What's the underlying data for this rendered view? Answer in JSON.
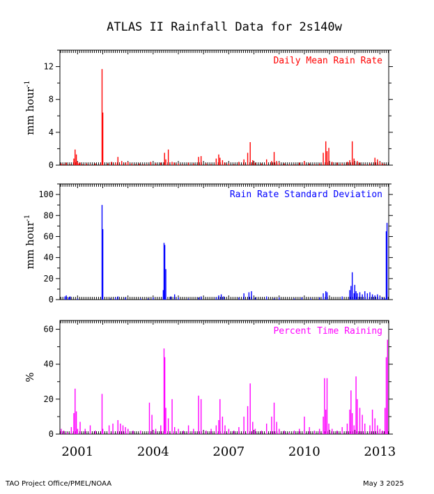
{
  "title": "ATLAS II Rainfall Data for 2s140w",
  "footer": {
    "left": "TAO Project Office/PMEL/NOAA",
    "right": "May  3 2025"
  },
  "colors": {
    "panel1": "#ff0000",
    "panel2": "#0000ff",
    "panel3": "#ff00ff",
    "axis": "#000000"
  },
  "x_axis": {
    "range": [
      2000.3,
      2013.35
    ],
    "tick_labels": [
      "2001",
      "2004",
      "2007",
      "2010",
      "2013"
    ]
  },
  "chart_data": [
    {
      "type": "bar",
      "title": "Daily Mean Rain Rate",
      "ylabel": "mm hour",
      "ylabel_superscript": "-1",
      "ylim": [
        0,
        14
      ],
      "yticks": [
        0,
        4,
        8,
        12
      ],
      "color": "#ff0000",
      "x": [
        2000.35,
        2000.45,
        2000.55,
        2000.7,
        2000.85,
        2000.9,
        2000.95,
        2001.0,
        2001.05,
        2001.1,
        2001.2,
        2001.35,
        2001.5,
        2001.7,
        2001.9,
        2001.97,
        2002.0,
        2002.2,
        2002.35,
        2002.5,
        2002.6,
        2002.75,
        2002.9,
        2003.0,
        2003.15,
        2003.3,
        2003.45,
        2003.6,
        2003.75,
        2003.9,
        2004.1,
        2004.3,
        2004.45,
        2004.5,
        2004.6,
        2004.75,
        2004.85,
        2005.0,
        2005.15,
        2005.4,
        2005.6,
        2005.8,
        2005.9,
        2006.1,
        2006.3,
        2006.5,
        2006.6,
        2006.65,
        2006.75,
        2006.85,
        2007.0,
        2007.2,
        2007.4,
        2007.6,
        2007.75,
        2007.85,
        2007.95,
        2008.05,
        2008.3,
        2008.5,
        2008.7,
        2008.8,
        2008.9,
        2009.0,
        2009.2,
        2009.4,
        2009.6,
        2009.8,
        2010.0,
        2010.2,
        2010.4,
        2010.6,
        2010.75,
        2010.85,
        2010.9,
        2010.97,
        2011.1,
        2011.3,
        2011.5,
        2011.7,
        2011.8,
        2011.9,
        2011.97,
        2012.1,
        2012.2,
        2012.4,
        2012.6,
        2012.8,
        2012.9,
        2013.0,
        2013.1,
        2013.2
      ],
      "values": [
        0.2,
        0.1,
        0.3,
        0.1,
        0.8,
        1.9,
        1.3,
        0.4,
        0.2,
        0.3,
        0.1,
        0.2,
        0.1,
        0.2,
        0.1,
        11.7,
        6.4,
        0.2,
        0.4,
        0.3,
        1.0,
        0.5,
        0.3,
        0.4,
        0.2,
        0.1,
        0.2,
        0.1,
        0.1,
        0.4,
        0.2,
        0.3,
        1.5,
        0.7,
        1.9,
        0.4,
        0.3,
        0.2,
        0.1,
        0.3,
        0.2,
        1.0,
        1.1,
        0.2,
        0.1,
        0.8,
        1.3,
        0.9,
        0.6,
        0.3,
        0.2,
        0.1,
        0.4,
        0.7,
        1.5,
        2.8,
        0.6,
        0.3,
        0.2,
        0.7,
        0.5,
        1.6,
        0.5,
        0.3,
        0.2,
        0.1,
        0.1,
        0.3,
        0.5,
        0.2,
        0.1,
        0.2,
        1.5,
        2.9,
        1.7,
        2.1,
        0.4,
        0.3,
        0.2,
        0.4,
        0.6,
        2.9,
        0.8,
        0.5,
        0.3,
        0.1,
        0.2,
        0.9,
        0.7,
        0.4,
        0.2,
        0.1
      ]
    },
    {
      "type": "bar",
      "title": "Rain Rate Standard Deviation",
      "ylabel": "mm hour",
      "ylabel_superscript": "-1",
      "ylim": [
        0,
        110
      ],
      "yticks": [
        0,
        20,
        40,
        60,
        80,
        100
      ],
      "color": "#0000ff",
      "x": [
        2000.5,
        2000.55,
        2000.65,
        2000.7,
        2001.0,
        2001.97,
        2002.0,
        2002.3,
        2002.5,
        2002.6,
        2002.9,
        2003.5,
        2003.8,
        2004.0,
        2004.4,
        2004.43,
        2004.46,
        2004.5,
        2004.7,
        2004.85,
        2005.0,
        2005.4,
        2005.8,
        2005.9,
        2006.5,
        2006.6,
        2006.7,
        2006.8,
        2007.4,
        2007.6,
        2007.8,
        2007.9,
        2008.05,
        2008.5,
        2008.8,
        2009.0,
        2009.6,
        2009.9,
        2010.25,
        2010.6,
        2010.75,
        2010.85,
        2010.9,
        2011.5,
        2011.8,
        2011.85,
        2011.9,
        2011.97,
        2012.0,
        2012.05,
        2012.1,
        2012.2,
        2012.3,
        2012.4,
        2012.5,
        2012.6,
        2012.7,
        2012.8,
        2012.9,
        2013.0,
        2013.1,
        2013.2,
        2013.25,
        2013.28
      ],
      "values": [
        3,
        4,
        2,
        3,
        1,
        90,
        67,
        1,
        2,
        3,
        2,
        1,
        1,
        2,
        9,
        54,
        52,
        29,
        3,
        5,
        2,
        1,
        2,
        3,
        2,
        4,
        5,
        3,
        2,
        6,
        7,
        8,
        2,
        3,
        1,
        2,
        1,
        2,
        1,
        2,
        6,
        8,
        7,
        3,
        9,
        13,
        26,
        6,
        14,
        8,
        6,
        7,
        5,
        8,
        6,
        7,
        5,
        4,
        5,
        3,
        2,
        1,
        65,
        73
      ]
    },
    {
      "type": "bar",
      "title": "Percent Time Raining",
      "ylabel": "%",
      "ylim": [
        0,
        65
      ],
      "yticks": [
        0,
        20,
        40,
        60
      ],
      "color": "#ff00ff",
      "x": [
        2000.35,
        2000.45,
        2000.6,
        2000.75,
        2000.85,
        2000.9,
        2000.95,
        2001.0,
        2001.1,
        2001.3,
        2001.5,
        2001.7,
        2001.97,
        2002.0,
        2002.25,
        2002.4,
        2002.6,
        2002.7,
        2002.8,
        2002.9,
        2003.0,
        2003.2,
        2003.5,
        2003.85,
        2003.95,
        2004.1,
        2004.3,
        2004.43,
        2004.46,
        2004.5,
        2004.6,
        2004.75,
        2004.85,
        2005.0,
        2005.2,
        2005.4,
        2005.6,
        2005.8,
        2005.9,
        2006.1,
        2006.3,
        2006.5,
        2006.6,
        2006.65,
        2006.75,
        2006.85,
        2007.0,
        2007.2,
        2007.4,
        2007.6,
        2007.75,
        2007.85,
        2007.95,
        2008.05,
        2008.3,
        2008.5,
        2008.7,
        2008.8,
        2008.9,
        2009.0,
        2009.2,
        2009.4,
        2009.6,
        2009.8,
        2010.0,
        2010.2,
        2010.4,
        2010.6,
        2010.75,
        2010.8,
        2010.85,
        2010.9,
        2010.97,
        2011.1,
        2011.3,
        2011.5,
        2011.7,
        2011.8,
        2011.85,
        2011.9,
        2011.97,
        2012.05,
        2012.1,
        2012.2,
        2012.3,
        2012.4,
        2012.6,
        2012.7,
        2012.8,
        2012.9,
        2013.0,
        2013.1,
        2013.2,
        2013.25,
        2013.3
      ],
      "values": [
        3,
        2,
        1,
        4,
        12,
        26,
        13,
        3,
        7,
        3,
        5,
        2,
        23,
        3,
        5,
        6,
        8,
        6,
        5,
        4,
        3,
        2,
        2,
        18,
        11,
        3,
        5,
        49,
        44,
        15,
        9,
        20,
        4,
        3,
        2,
        5,
        3,
        22,
        20,
        2,
        3,
        5,
        8,
        20,
        10,
        5,
        3,
        2,
        4,
        10,
        16,
        29,
        7,
        3,
        2,
        6,
        10,
        18,
        7,
        3,
        2,
        1,
        2,
        3,
        10,
        4,
        2,
        3,
        10,
        32,
        14,
        32,
        6,
        3,
        2,
        4,
        6,
        14,
        25,
        12,
        5,
        33,
        20,
        15,
        11,
        6,
        5,
        14,
        9,
        5,
        3,
        2,
        15,
        44,
        54
      ]
    }
  ]
}
